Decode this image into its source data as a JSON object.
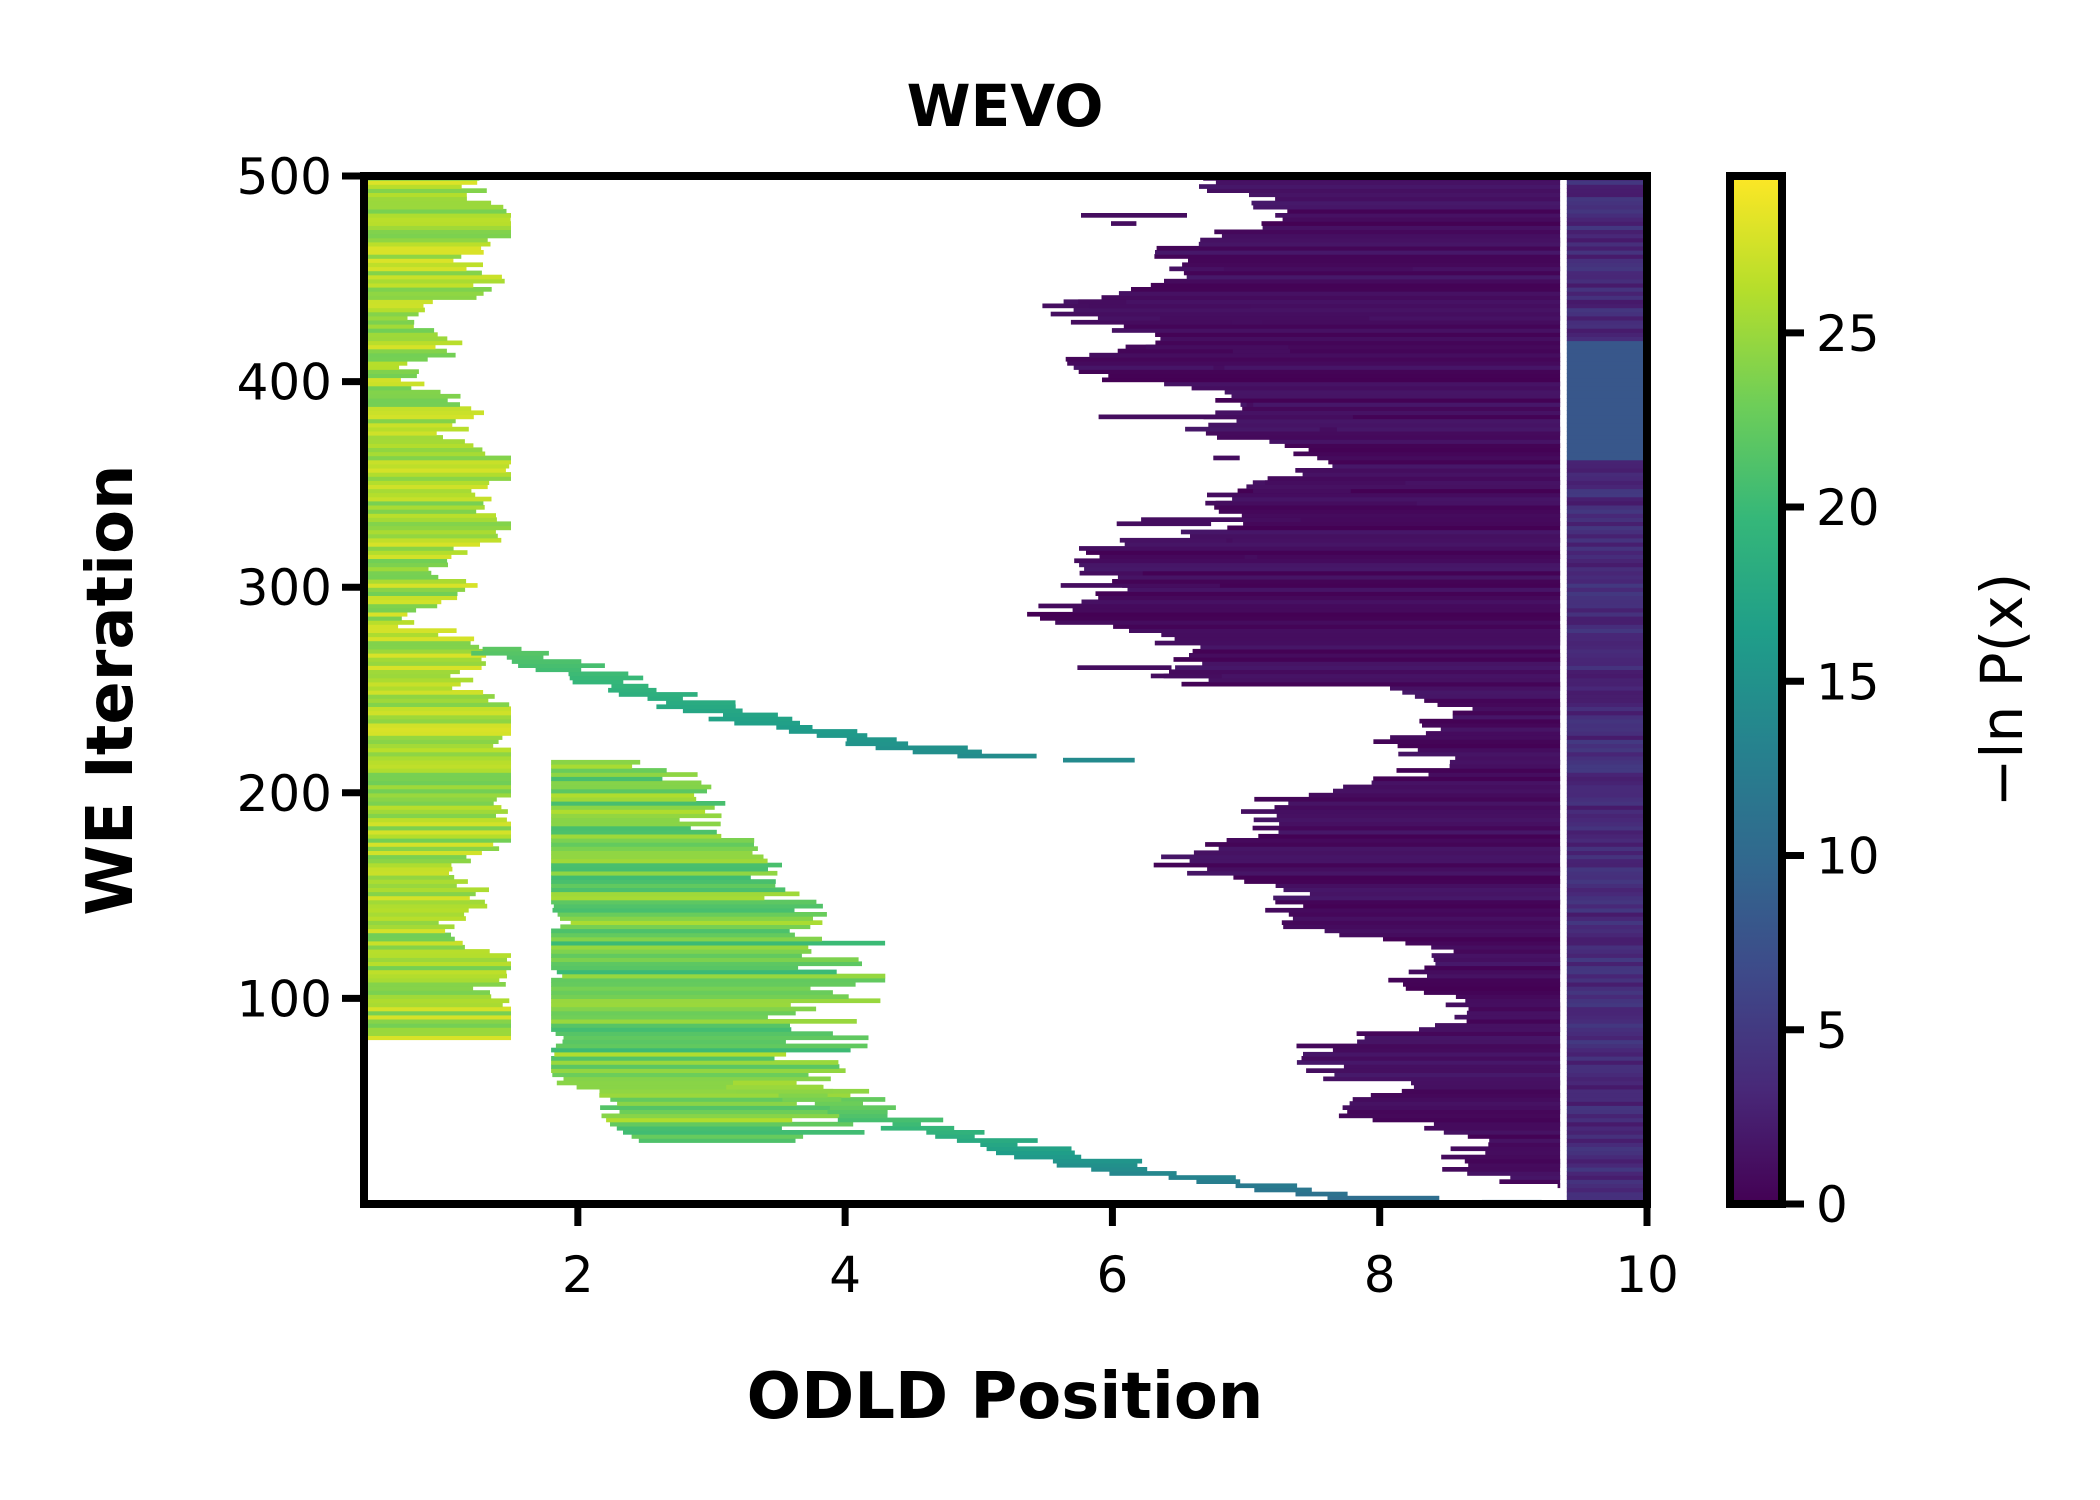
{
  "chart_data": {
    "type": "heatmap",
    "title": "WEVO",
    "xlabel": "ODLD Position",
    "ylabel": "WE Iteration",
    "xlim": [
      0.4,
      10
    ],
    "ylim": [
      0,
      500
    ],
    "xticks": [
      2,
      4,
      6,
      8,
      10
    ],
    "yticks": [
      100,
      200,
      300,
      400,
      500
    ],
    "colorbar": {
      "label": "−ln P(x)",
      "range": [
        0,
        29.5
      ],
      "ticks": [
        0,
        5,
        10,
        15,
        20,
        25
      ],
      "colormap": "viridis"
    },
    "grid": false,
    "regions": [
      {
        "name": "wall",
        "x_range": [
          0.4,
          1.5
        ],
        "iterations": [
          80,
          500
        ],
        "value_range": [
          23,
          28
        ]
      },
      {
        "name": "descending trajectory (early)",
        "from": [
          9.0,
          0
        ],
        "to": [
          3.3,
          60
        ],
        "value_range": [
          10,
          26
        ]
      },
      {
        "name": "mid cluster",
        "x_range": [
          1.8,
          4.3
        ],
        "iterations": [
          30,
          215
        ],
        "value_range": [
          20,
          26
        ]
      },
      {
        "name": "descending trajectory (late)",
        "from": [
          6.0,
          215
        ],
        "to": [
          1.5,
          270
        ],
        "value_range": [
          14,
          22
        ]
      },
      {
        "name": "right basin",
        "x_range": [
          5.0,
          10.0
        ],
        "iterations": [
          0,
          500
        ],
        "value_range": [
          0,
          2
        ]
      },
      {
        "name": "basin edge",
        "x_range": [
          9.4,
          10.0
        ],
        "iterations": [
          0,
          500
        ],
        "value_range": [
          1,
          9
        ]
      }
    ],
    "colors": {
      "viridis": [
        "#440154",
        "#482878",
        "#3e4989",
        "#31688e",
        "#26828e",
        "#1f9e89",
        "#35b779",
        "#6ece58",
        "#b5de2b",
        "#fde725"
      ]
    }
  }
}
